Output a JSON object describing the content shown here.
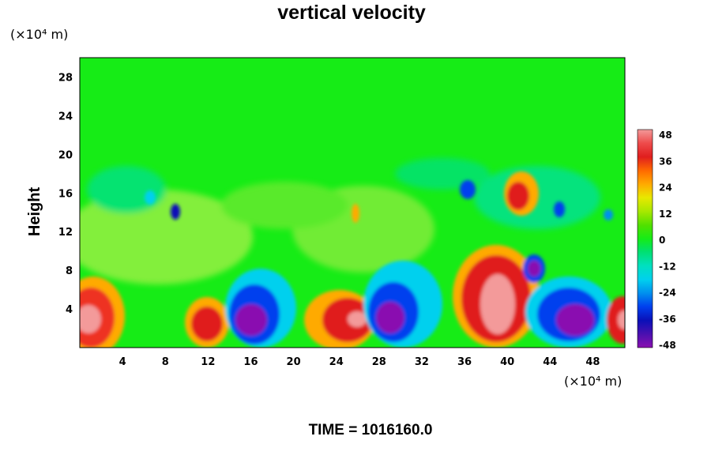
{
  "chart_data": {
    "type": "heatmap",
    "title": "vertical velocity",
    "ylabel": "Height",
    "y_unit": "(×10⁴ m)",
    "x_unit": "(×10⁴ m)",
    "x_ticks": [
      4,
      8,
      12,
      16,
      20,
      24,
      28,
      32,
      36,
      40,
      44,
      48
    ],
    "y_ticks": [
      4,
      8,
      12,
      16,
      20,
      24,
      28
    ],
    "xlim": [
      0,
      51
    ],
    "ylim": [
      0,
      30
    ],
    "colorbar": {
      "ticks": [
        48,
        36,
        24,
        12,
        0,
        -12,
        -24,
        -36,
        -48
      ],
      "range": [
        -48,
        48
      ]
    },
    "features": [
      {
        "x": 1.0,
        "y": 3.2,
        "value": 40
      },
      {
        "x": 11.8,
        "y": 2.5,
        "value": 38
      },
      {
        "x": 16.2,
        "y": 2.8,
        "value": -48
      },
      {
        "x": 17.6,
        "y": 5.5,
        "value": -30
      },
      {
        "x": 25.0,
        "y": 3.0,
        "value": 36
      },
      {
        "x": 26.0,
        "y": 2.5,
        "value": 42
      },
      {
        "x": 28.8,
        "y": 3.2,
        "value": -48
      },
      {
        "x": 30.8,
        "y": 7.0,
        "value": -30
      },
      {
        "x": 38.6,
        "y": 4.2,
        "value": 48
      },
      {
        "x": 38.6,
        "y": 7.0,
        "value": 30
      },
      {
        "x": 42.4,
        "y": 8.2,
        "value": -44
      },
      {
        "x": 45.8,
        "y": 3.2,
        "value": -48
      },
      {
        "x": 47.0,
        "y": 2.5,
        "value": -48
      },
      {
        "x": 50.6,
        "y": 3.0,
        "value": 40
      },
      {
        "x": 41.2,
        "y": 15.4,
        "value": 34
      },
      {
        "x": 41.8,
        "y": 17.0,
        "value": 28
      },
      {
        "x": 36.2,
        "y": 16.0,
        "value": -36
      },
      {
        "x": 44.8,
        "y": 14.0,
        "value": -30
      },
      {
        "x": 9.0,
        "y": 14.0,
        "value": -40
      },
      {
        "x": 25.6,
        "y": 14.2,
        "value": 22
      }
    ],
    "footer": "TIME = 1016160.0"
  }
}
